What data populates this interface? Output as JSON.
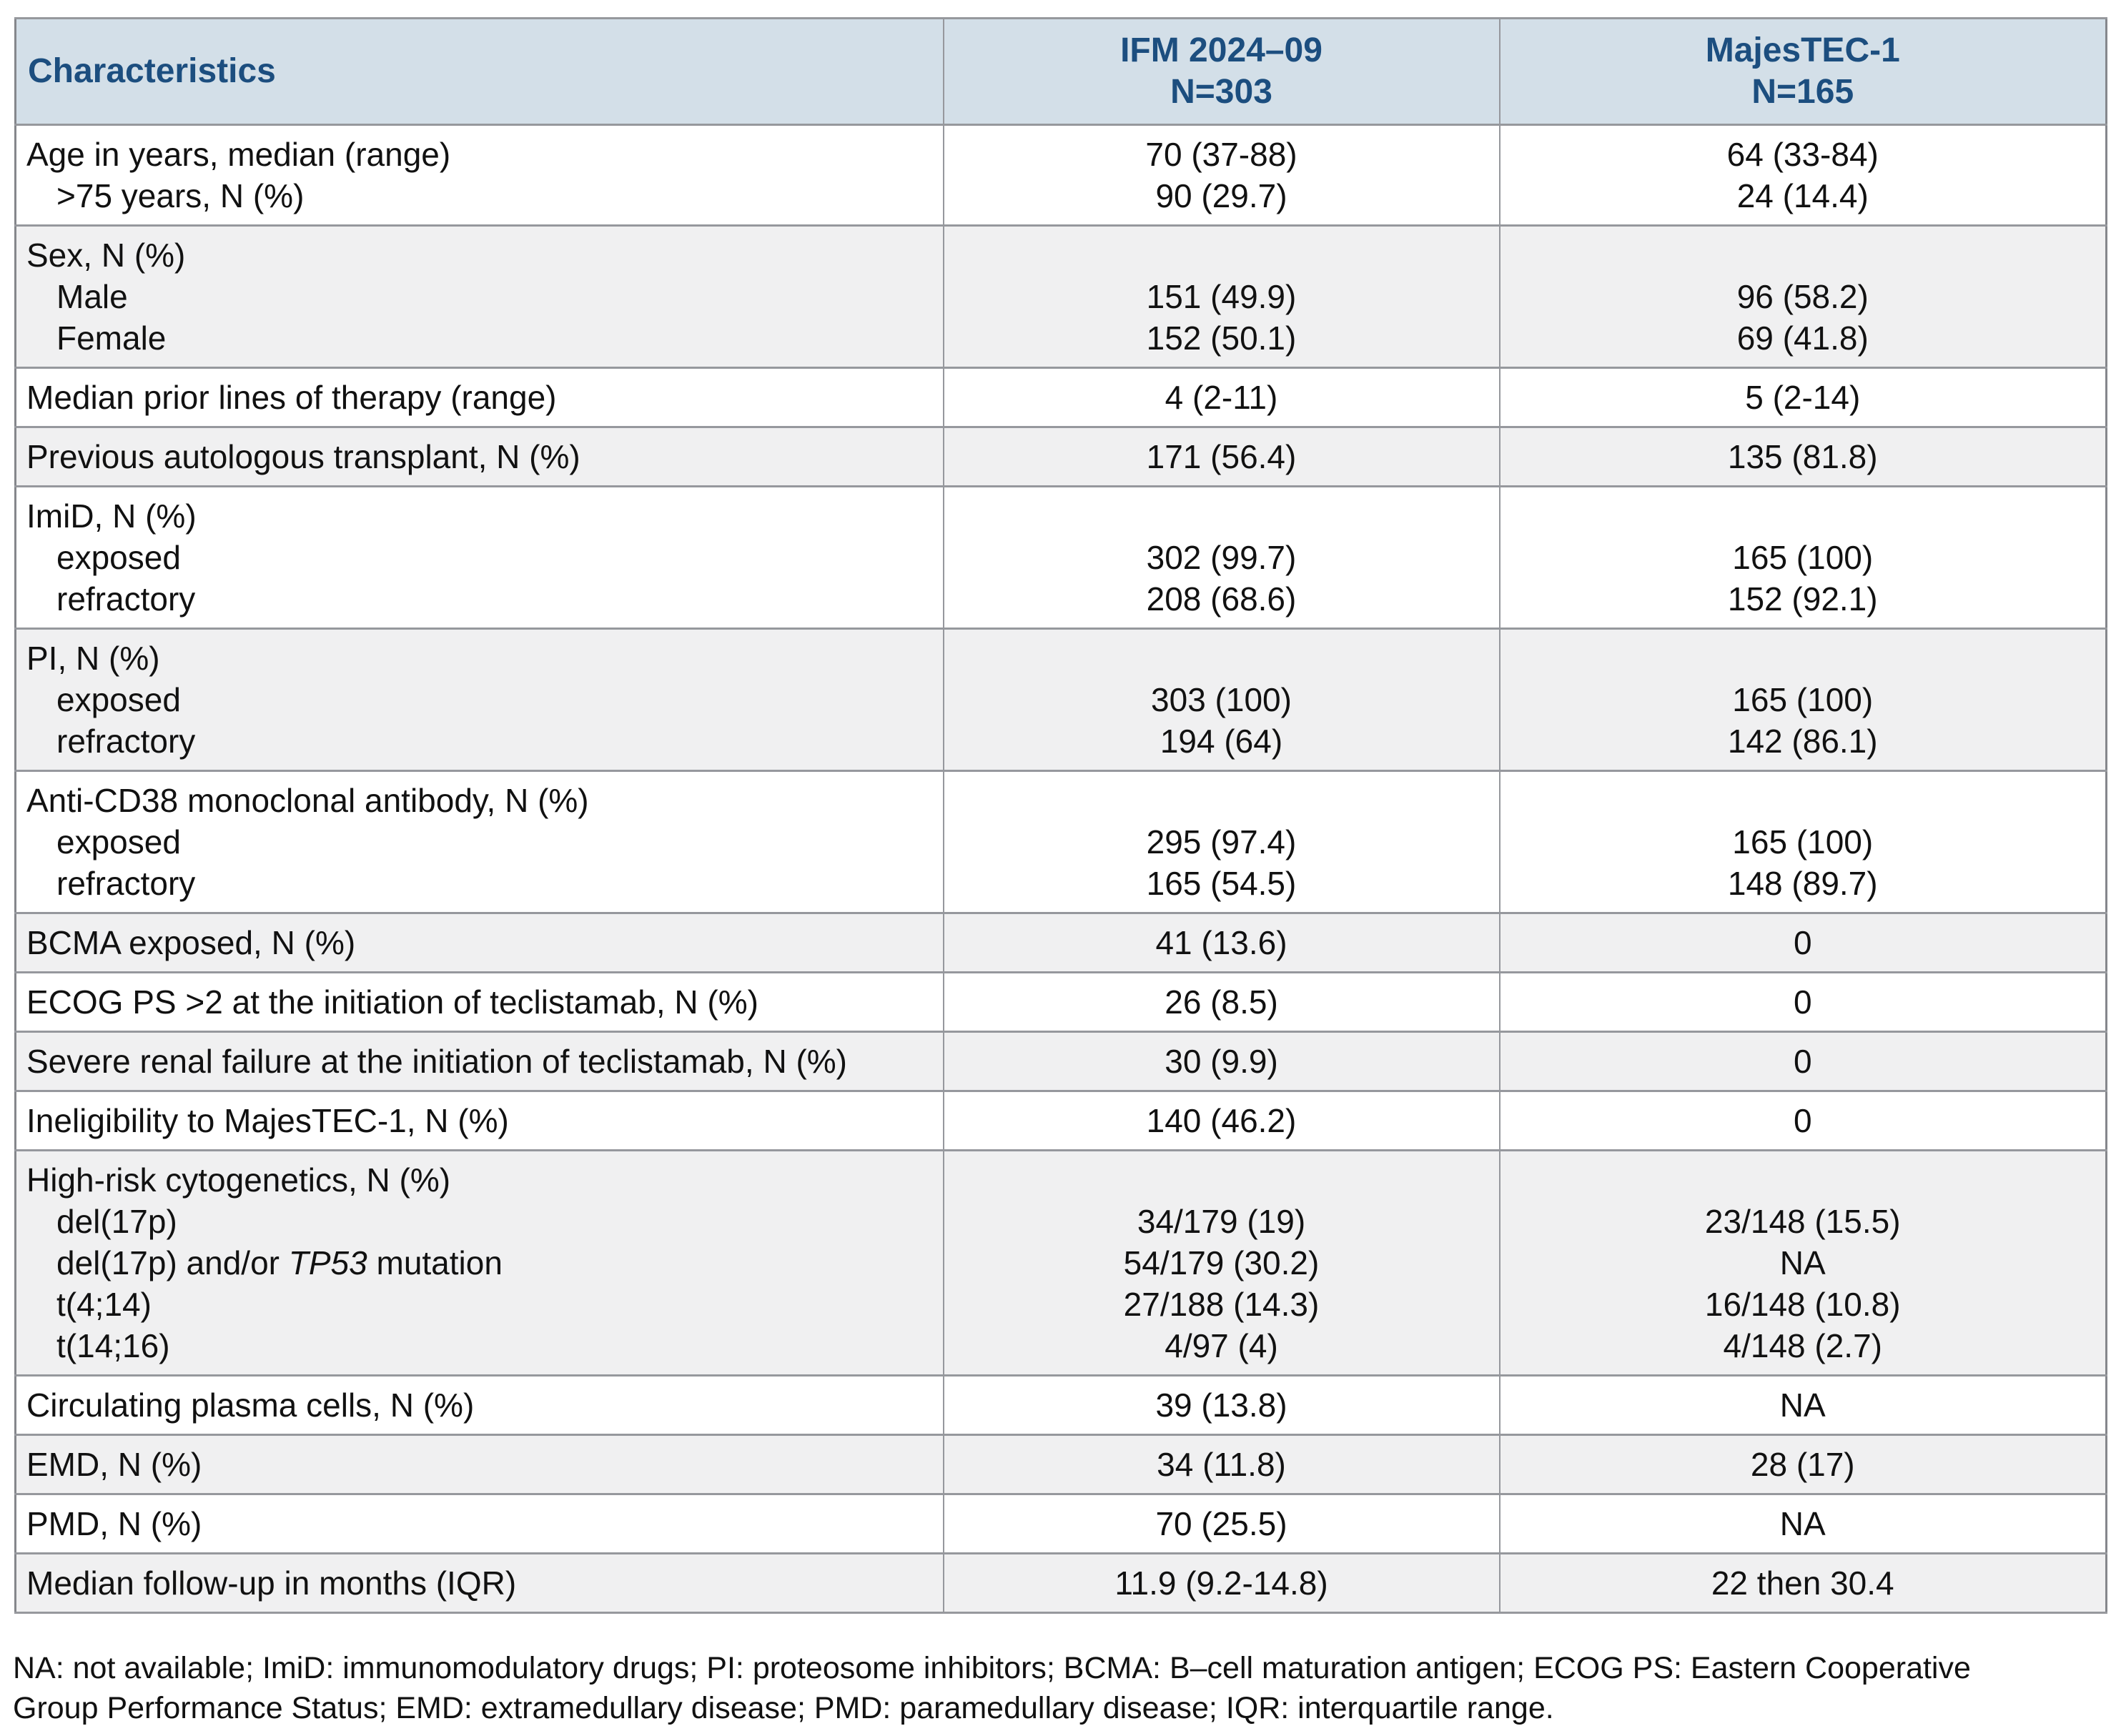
{
  "table": {
    "header": {
      "characteristics": "Characteristics",
      "ifm": [
        "IFM 2024–09",
        "N=303"
      ],
      "majestec": [
        "MajesTEC-1",
        "N=165"
      ]
    },
    "groups": [
      {
        "shaded": false,
        "lines": [
          {
            "label": "Age in years, median (range)",
            "indent": false,
            "ifm": "70 (37-88)",
            "majestec": "64 (33-84)"
          },
          {
            "label": ">75 years, N (%)",
            "indent": true,
            "ifm": "90 (29.7)",
            "majestec": "24 (14.4)"
          }
        ]
      },
      {
        "shaded": true,
        "lines": [
          {
            "label": "Sex, N (%)",
            "indent": false,
            "ifm": "",
            "majestec": ""
          },
          {
            "label": "Male",
            "indent": true,
            "ifm": "151 (49.9)",
            "majestec": "96 (58.2)"
          },
          {
            "label": "Female",
            "indent": true,
            "ifm": "152 (50.1)",
            "majestec": "69 (41.8)"
          }
        ]
      },
      {
        "shaded": false,
        "lines": [
          {
            "label": "Median prior lines of therapy (range)",
            "indent": false,
            "ifm": "4 (2-11)",
            "majestec": "5 (2-14)"
          }
        ]
      },
      {
        "shaded": true,
        "lines": [
          {
            "label": "Previous autologous transplant, N (%)",
            "indent": false,
            "ifm": "171 (56.4)",
            "majestec": "135 (81.8)"
          }
        ]
      },
      {
        "shaded": false,
        "lines": [
          {
            "label": "ImiD, N (%)",
            "indent": false,
            "ifm": "",
            "majestec": ""
          },
          {
            "label": "exposed",
            "indent": true,
            "ifm": "302 (99.7)",
            "majestec": "165 (100)"
          },
          {
            "label": "refractory",
            "indent": true,
            "ifm": "208 (68.6)",
            "majestec": "152 (92.1)"
          }
        ]
      },
      {
        "shaded": true,
        "lines": [
          {
            "label": "PI, N (%)",
            "indent": false,
            "ifm": "",
            "majestec": ""
          },
          {
            "label": "exposed",
            "indent": true,
            "ifm": "303 (100)",
            "majestec": "165 (100)"
          },
          {
            "label": "refractory",
            "indent": true,
            "ifm": "194 (64)",
            "majestec": "142 (86.1)"
          }
        ]
      },
      {
        "shaded": false,
        "lines": [
          {
            "label": "Anti-CD38 monoclonal antibody, N (%)",
            "indent": false,
            "ifm": "",
            "majestec": ""
          },
          {
            "label": "exposed",
            "indent": true,
            "ifm": "295 (97.4)",
            "majestec": "165 (100)"
          },
          {
            "label": "refractory",
            "indent": true,
            "ifm": "165 (54.5)",
            "majestec": "148 (89.7)"
          }
        ]
      },
      {
        "shaded": true,
        "lines": [
          {
            "label": "BCMA exposed, N (%)",
            "indent": false,
            "ifm": "41 (13.6)",
            "majestec": "0"
          }
        ]
      },
      {
        "shaded": false,
        "lines": [
          {
            "label": "ECOG PS >2 at the initiation of teclistamab, N (%)",
            "indent": false,
            "ifm": "26 (8.5)",
            "majestec": "0"
          }
        ]
      },
      {
        "shaded": true,
        "lines": [
          {
            "label": "Severe renal failure at the initiation of teclistamab, N (%)",
            "indent": false,
            "ifm": "30 (9.9)",
            "majestec": "0"
          }
        ]
      },
      {
        "shaded": false,
        "lines": [
          {
            "label": "Ineligibility to MajesTEC-1, N (%)",
            "indent": false,
            "ifm": "140 (46.2)",
            "majestec": "0"
          }
        ]
      },
      {
        "shaded": true,
        "lines": [
          {
            "label": "High-risk cytogenetics, N (%)",
            "indent": false,
            "ifm": "",
            "majestec": ""
          },
          {
            "label": "del(17p)",
            "indent": true,
            "ifm": "34/179 (19)",
            "majestec": "23/148 (15.5)"
          },
          {
            "label_parts": [
              {
                "text": "del(17p) and/or ",
                "italic": false
              },
              {
                "text": "TP53",
                "italic": true
              },
              {
                "text": " mutation",
                "italic": false
              }
            ],
            "indent": true,
            "ifm": "54/179 (30.2)",
            "majestec": "NA"
          },
          {
            "label": "t(4;14)",
            "indent": true,
            "ifm": "27/188 (14.3)",
            "majestec": "16/148 (10.8)"
          },
          {
            "label": "t(14;16)",
            "indent": true,
            "ifm": "4/97 (4)",
            "majestec": "4/148 (2.7)"
          }
        ]
      },
      {
        "shaded": false,
        "lines": [
          {
            "label": "Circulating plasma cells, N (%)",
            "indent": false,
            "ifm": "39 (13.8)",
            "majestec": "NA"
          }
        ]
      },
      {
        "shaded": true,
        "lines": [
          {
            "label": "EMD, N (%)",
            "indent": false,
            "ifm": "34 (11.8)",
            "majestec": "28 (17)"
          }
        ]
      },
      {
        "shaded": false,
        "lines": [
          {
            "label": "PMD, N (%)",
            "indent": false,
            "ifm": "70 (25.5)",
            "majestec": "NA"
          }
        ]
      },
      {
        "shaded": true,
        "lines": [
          {
            "label": "Median follow-up in months (IQR)",
            "indent": false,
            "ifm": "11.9 (9.2-14.8)",
            "majestec": "22 then 30.4"
          }
        ]
      }
    ]
  },
  "footnote": {
    "line1": "NA: not available; ImiD: immunomodulatory drugs; PI: proteosome inhibitors; BCMA: B–cell maturation antigen; ECOG PS: Eastern Cooperative",
    "line2": "Group Performance Status; EMD: extramedullary disease; PMD: paramedullary disease; IQR: interquartile range."
  },
  "colors": {
    "header_bg": "#d3dfe8",
    "header_text": "#1c4e7f",
    "shaded_row_bg": "#f0f0f1",
    "border": "#96989d",
    "body_text": "#111111"
  }
}
